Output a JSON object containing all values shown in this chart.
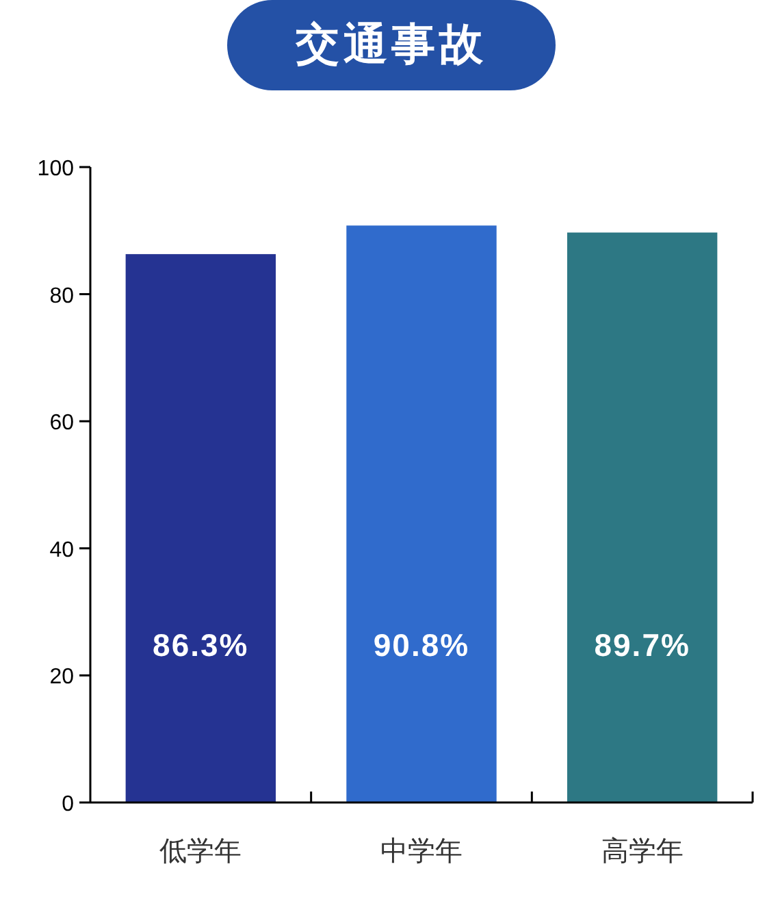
{
  "chart_data": {
    "type": "bar",
    "title": "交通事故",
    "categories": [
      "低学年",
      "中学年",
      "高学年"
    ],
    "values": [
      86.3,
      90.8,
      89.7
    ],
    "value_labels": [
      "86.3%",
      "90.8%",
      "89.7%"
    ],
    "colors": [
      "#253392",
      "#306bcc",
      "#2d7884"
    ],
    "ylim": [
      0,
      100
    ],
    "yticks": [
      0,
      20,
      40,
      60,
      80,
      100
    ]
  }
}
